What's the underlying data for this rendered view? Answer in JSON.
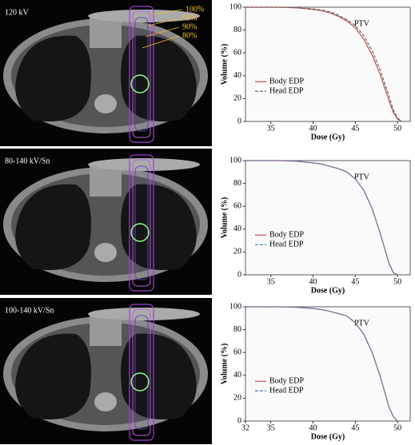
{
  "images": [
    {
      "label": "120 kV",
      "isodose": [
        "100%",
        "95%",
        "90%",
        "80%"
      ]
    },
    {
      "label": "80-140 kV/Sn"
    },
    {
      "label": "100-140 kV/Sn"
    }
  ],
  "chart_data": [
    {
      "type": "line",
      "xlabel": "Dose (Gy)",
      "ylabel": "Volume (%)",
      "annotation": "PTV",
      "legend": "lower left",
      "x": [
        32,
        34,
        36,
        38,
        40,
        41,
        42,
        43,
        44,
        45,
        46,
        47,
        48,
        49,
        49.5,
        50,
        50.5
      ],
      "xlim": [
        32,
        51.5
      ],
      "xticks": [
        35,
        40,
        45,
        50
      ],
      "ylim": [
        0,
        100
      ],
      "yticks": [
        0,
        20,
        40,
        60,
        80,
        100
      ],
      "series": [
        {
          "name": "Body EDP",
          "color": "#c0504d",
          "dash": false,
          "values": [
            100,
            100,
            100,
            99.5,
            98,
            97,
            95,
            92,
            88,
            82,
            72,
            58,
            40,
            18,
            8,
            2,
            0
          ]
        },
        {
          "name": "Head EDP",
          "color": "#666666",
          "dash": true,
          "values": [
            100,
            100,
            100,
            99.6,
            98.5,
            97.5,
            96,
            93,
            89,
            84,
            75,
            62,
            44,
            22,
            10,
            3,
            0
          ]
        }
      ]
    },
    {
      "type": "line",
      "xlabel": "Dose (Gy)",
      "ylabel": "Volume (%)",
      "annotation": "PTV",
      "legend": "lower left",
      "x": [
        32,
        34,
        36,
        38,
        40,
        41,
        42,
        43,
        44,
        45,
        46,
        47,
        48,
        49,
        49.5,
        50
      ],
      "xlim": [
        32,
        51.5
      ],
      "xticks": [
        35,
        40,
        45,
        50
      ],
      "ylim": [
        0,
        100
      ],
      "yticks": [
        0,
        20,
        40,
        60,
        80,
        100
      ],
      "series": [
        {
          "name": "Body EDP",
          "color": "#c0504d",
          "dash": false,
          "values": [
            100,
            100,
            100,
            99.5,
            98,
            97,
            95,
            93,
            90,
            84,
            74,
            58,
            35,
            10,
            2,
            0
          ]
        },
        {
          "name": "Head EDP",
          "color": "#4f81bd",
          "dash": true,
          "values": [
            100,
            100,
            100,
            99.5,
            98,
            97,
            95,
            93,
            90,
            84,
            74,
            58,
            35,
            10,
            2,
            0
          ]
        }
      ]
    },
    {
      "type": "line",
      "xlabel": "Dose (Gy)",
      "ylabel": "Volume (%)",
      "annotation": "PTV",
      "legend": "lower left",
      "x": [
        32,
        34,
        36,
        38,
        40,
        41,
        42,
        43,
        44,
        45,
        46,
        47,
        48,
        49,
        49.5,
        50
      ],
      "xlim": [
        32,
        51.5
      ],
      "xticks": [
        32,
        35,
        40,
        45,
        50
      ],
      "ylim": [
        0,
        100
      ],
      "yticks": [
        0,
        20,
        40,
        60,
        80,
        100
      ],
      "series": [
        {
          "name": "Body EDP",
          "color": "#c0504d",
          "dash": false,
          "values": [
            100,
            100,
            100,
            99.6,
            98.5,
            97.5,
            96,
            94,
            92,
            86,
            76,
            60,
            38,
            12,
            4,
            0
          ]
        },
        {
          "name": "Head EDP",
          "color": "#4f81bd",
          "dash": true,
          "values": [
            100,
            100,
            100,
            99.6,
            98.5,
            97.5,
            96,
            94,
            92,
            86,
            76,
            60,
            38,
            12,
            4,
            0
          ]
        }
      ]
    }
  ]
}
